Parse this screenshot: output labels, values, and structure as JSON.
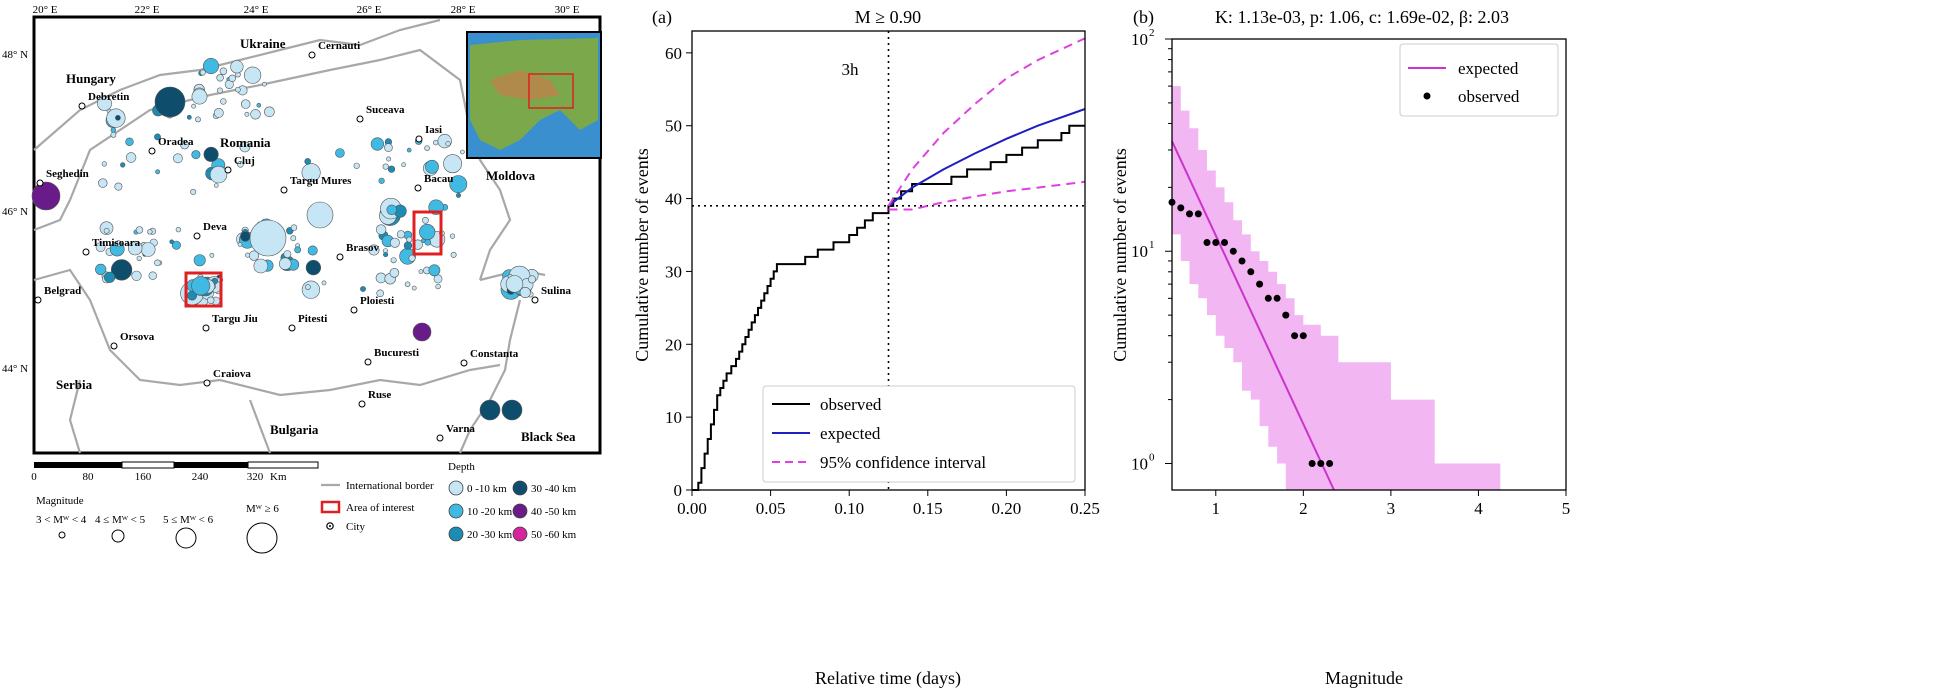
{
  "map": {
    "lon_ticks": [
      "20° E",
      "22° E",
      "24° E",
      "26° E",
      "28° E",
      "30° E"
    ],
    "lat_ticks": [
      "48° N",
      "46° N",
      "44° N"
    ],
    "countries": [
      "Hungary",
      "Ukraine",
      "Romania",
      "Moldova",
      "Serbia",
      "Bulgaria",
      "Black Sea"
    ],
    "cities": [
      "Debretin",
      "Oradea",
      "Seghedin",
      "Cluj",
      "Targu Mures",
      "Cernauti",
      "Suceava",
      "Iasi",
      "Bacau",
      "Deva",
      "Timisoara",
      "Brasov",
      "Belgrad",
      "Targu Jiu",
      "Pitesti",
      "Ploiesti",
      "Orsova",
      "Bucuresti",
      "Craiova",
      "Constanta",
      "Ruse",
      "Varna",
      "Sulina"
    ],
    "scale": {
      "ticks": [
        "0",
        "80",
        "160",
        "240",
        "320"
      ],
      "unit": "Km"
    },
    "legend": {
      "magnitude_title": "Magnitude",
      "magnitude_classes": [
        "3 < Mᵂ < 4",
        "4 ≤ Mᵂ < 5",
        "5 ≤ Mᵂ < 6",
        "Mᵂ ≥ 6"
      ],
      "international_border": "International border",
      "area_of_interest": "Area of interest",
      "city": "City",
      "depth_title": "Depth",
      "depth_classes": [
        {
          "label": "0 -10 km",
          "color": "#c6e6f5"
        },
        {
          "label": "10 -20 km",
          "color": "#40b9e3"
        },
        {
          "label": "20 -30 km",
          "color": "#1b8cb3"
        },
        {
          "label": "30 -40 km",
          "color": "#0f4d6d"
        },
        {
          "label": "40 -50 km",
          "color": "#6a1b8a"
        },
        {
          "label": "50 -60 km",
          "color": "#d6249c"
        }
      ]
    }
  },
  "chart_data": [
    {
      "type": "line",
      "panel_label": "(a)",
      "title": "M ≥ 0.90",
      "xlabel": "Relative time (days)",
      "ylabel": "Cumulative number of events",
      "xlim": [
        0,
        0.25
      ],
      "ylim": [
        0,
        63
      ],
      "xticks": [
        "0.00",
        "0.05",
        "0.10",
        "0.15",
        "0.20",
        "0.25"
      ],
      "yticks": [
        "0",
        "10",
        "20",
        "30",
        "40",
        "50",
        "60"
      ],
      "annotation": "3h",
      "reference_lines": {
        "x": 0.125,
        "y": 39
      },
      "legend_position": "lower-right",
      "series": [
        {
          "name": "observed",
          "color": "#000000",
          "style": "step",
          "x": [
            0.004,
            0.006,
            0.008,
            0.01,
            0.012,
            0.014,
            0.016,
            0.018,
            0.02,
            0.022,
            0.025,
            0.028,
            0.03,
            0.032,
            0.034,
            0.036,
            0.038,
            0.04,
            0.042,
            0.044,
            0.046,
            0.048,
            0.05,
            0.052,
            0.054,
            0.056,
            0.058,
            0.06,
            0.072,
            0.08,
            0.09,
            0.1,
            0.105,
            0.11,
            0.115,
            0.12,
            0.125,
            0.128,
            0.133,
            0.14,
            0.15,
            0.165,
            0.175,
            0.19,
            0.2,
            0.21,
            0.22,
            0.235,
            0.24,
            0.25
          ],
          "y": [
            1,
            3,
            5,
            7,
            9,
            11,
            13,
            14,
            15,
            16,
            17,
            18,
            19,
            20,
            21,
            22,
            23,
            24,
            25,
            26,
            27,
            28,
            29,
            30,
            31,
            31,
            31,
            31,
            32,
            33,
            34,
            35,
            36,
            37,
            38,
            38,
            39,
            40,
            41,
            42,
            42,
            43,
            44,
            45,
            46,
            47,
            48,
            49,
            50,
            50
          ]
        },
        {
          "name": "expected",
          "color": "#1f1fbf",
          "x": [
            0.125,
            0.14,
            0.16,
            0.18,
            0.2,
            0.22,
            0.25
          ],
          "y": [
            39,
            41.5,
            44,
            46.2,
            48.2,
            50,
            52.3
          ]
        },
        {
          "name": "95% confidence interval",
          "color": "#e040e0",
          "style": "dashed",
          "x": [
            0.125,
            0.14,
            0.16,
            0.18,
            0.2,
            0.22,
            0.25
          ],
          "y": [
            39,
            44,
            49,
            53,
            56.5,
            59,
            62
          ]
        },
        {
          "name": "",
          "color": "#e040e0",
          "style": "dashed",
          "x": [
            0.125,
            0.14,
            0.16,
            0.18,
            0.2,
            0.22,
            0.25
          ],
          "y": [
            38.5,
            38.5,
            39.5,
            40.3,
            41,
            41.5,
            42.3
          ]
        }
      ]
    },
    {
      "type": "scatter",
      "panel_label": "(b)",
      "title": "K: 1.13e-03, p: 1.06, c: 1.69e-02, β: 2.03",
      "xlabel": "Magnitude",
      "ylabel": "Cumulative number of events",
      "xlim": [
        0.5,
        5
      ],
      "ylim": [
        0.75,
        100
      ],
      "yscale": "log",
      "xticks": [
        "1",
        "2",
        "3",
        "4",
        "5"
      ],
      "legend_position": "top-right",
      "series": [
        {
          "name": "expected",
          "color": "#cc33cc",
          "style": "line",
          "x": [
            0.5,
            2.35
          ],
          "y": [
            33,
            0.75
          ]
        },
        {
          "name": "observed",
          "color": "#000000",
          "style": "markers",
          "x": [
            0.5,
            0.6,
            0.7,
            0.8,
            0.9,
            1.0,
            1.1,
            1.2,
            1.3,
            1.4,
            1.5,
            1.6,
            1.7,
            1.8,
            1.9,
            2.0,
            2.1,
            2.2,
            2.3
          ],
          "y": [
            17,
            16,
            15,
            15,
            11,
            11,
            11,
            10,
            9,
            8,
            7,
            6,
            6,
            5,
            4,
            4,
            1,
            1,
            1
          ]
        },
        {
          "name": "",
          "color": "#f2b6f2",
          "style": "band",
          "x": [
            0.5,
            0.6,
            0.7,
            0.8,
            0.9,
            1.0,
            1.1,
            1.2,
            1.3,
            1.4,
            1.5,
            1.6,
            1.7,
            1.8,
            1.9,
            2.0,
            2.2,
            2.4,
            2.6,
            3.0,
            3.5,
            4.25
          ],
          "upper": [
            60,
            46,
            38,
            30,
            24,
            20,
            17,
            14,
            12,
            10,
            9,
            8,
            7,
            6,
            5,
            4.5,
            4,
            3,
            3,
            2,
            1,
            1
          ],
          "lower": [
            12,
            9,
            7,
            6,
            5,
            4,
            3.5,
            3,
            2.2,
            2,
            1.5,
            1.2,
            1,
            0.75,
            0.75,
            0.75,
            0.75,
            0.75,
            0.75,
            0.75,
            0.75,
            0.75
          ]
        }
      ]
    }
  ]
}
